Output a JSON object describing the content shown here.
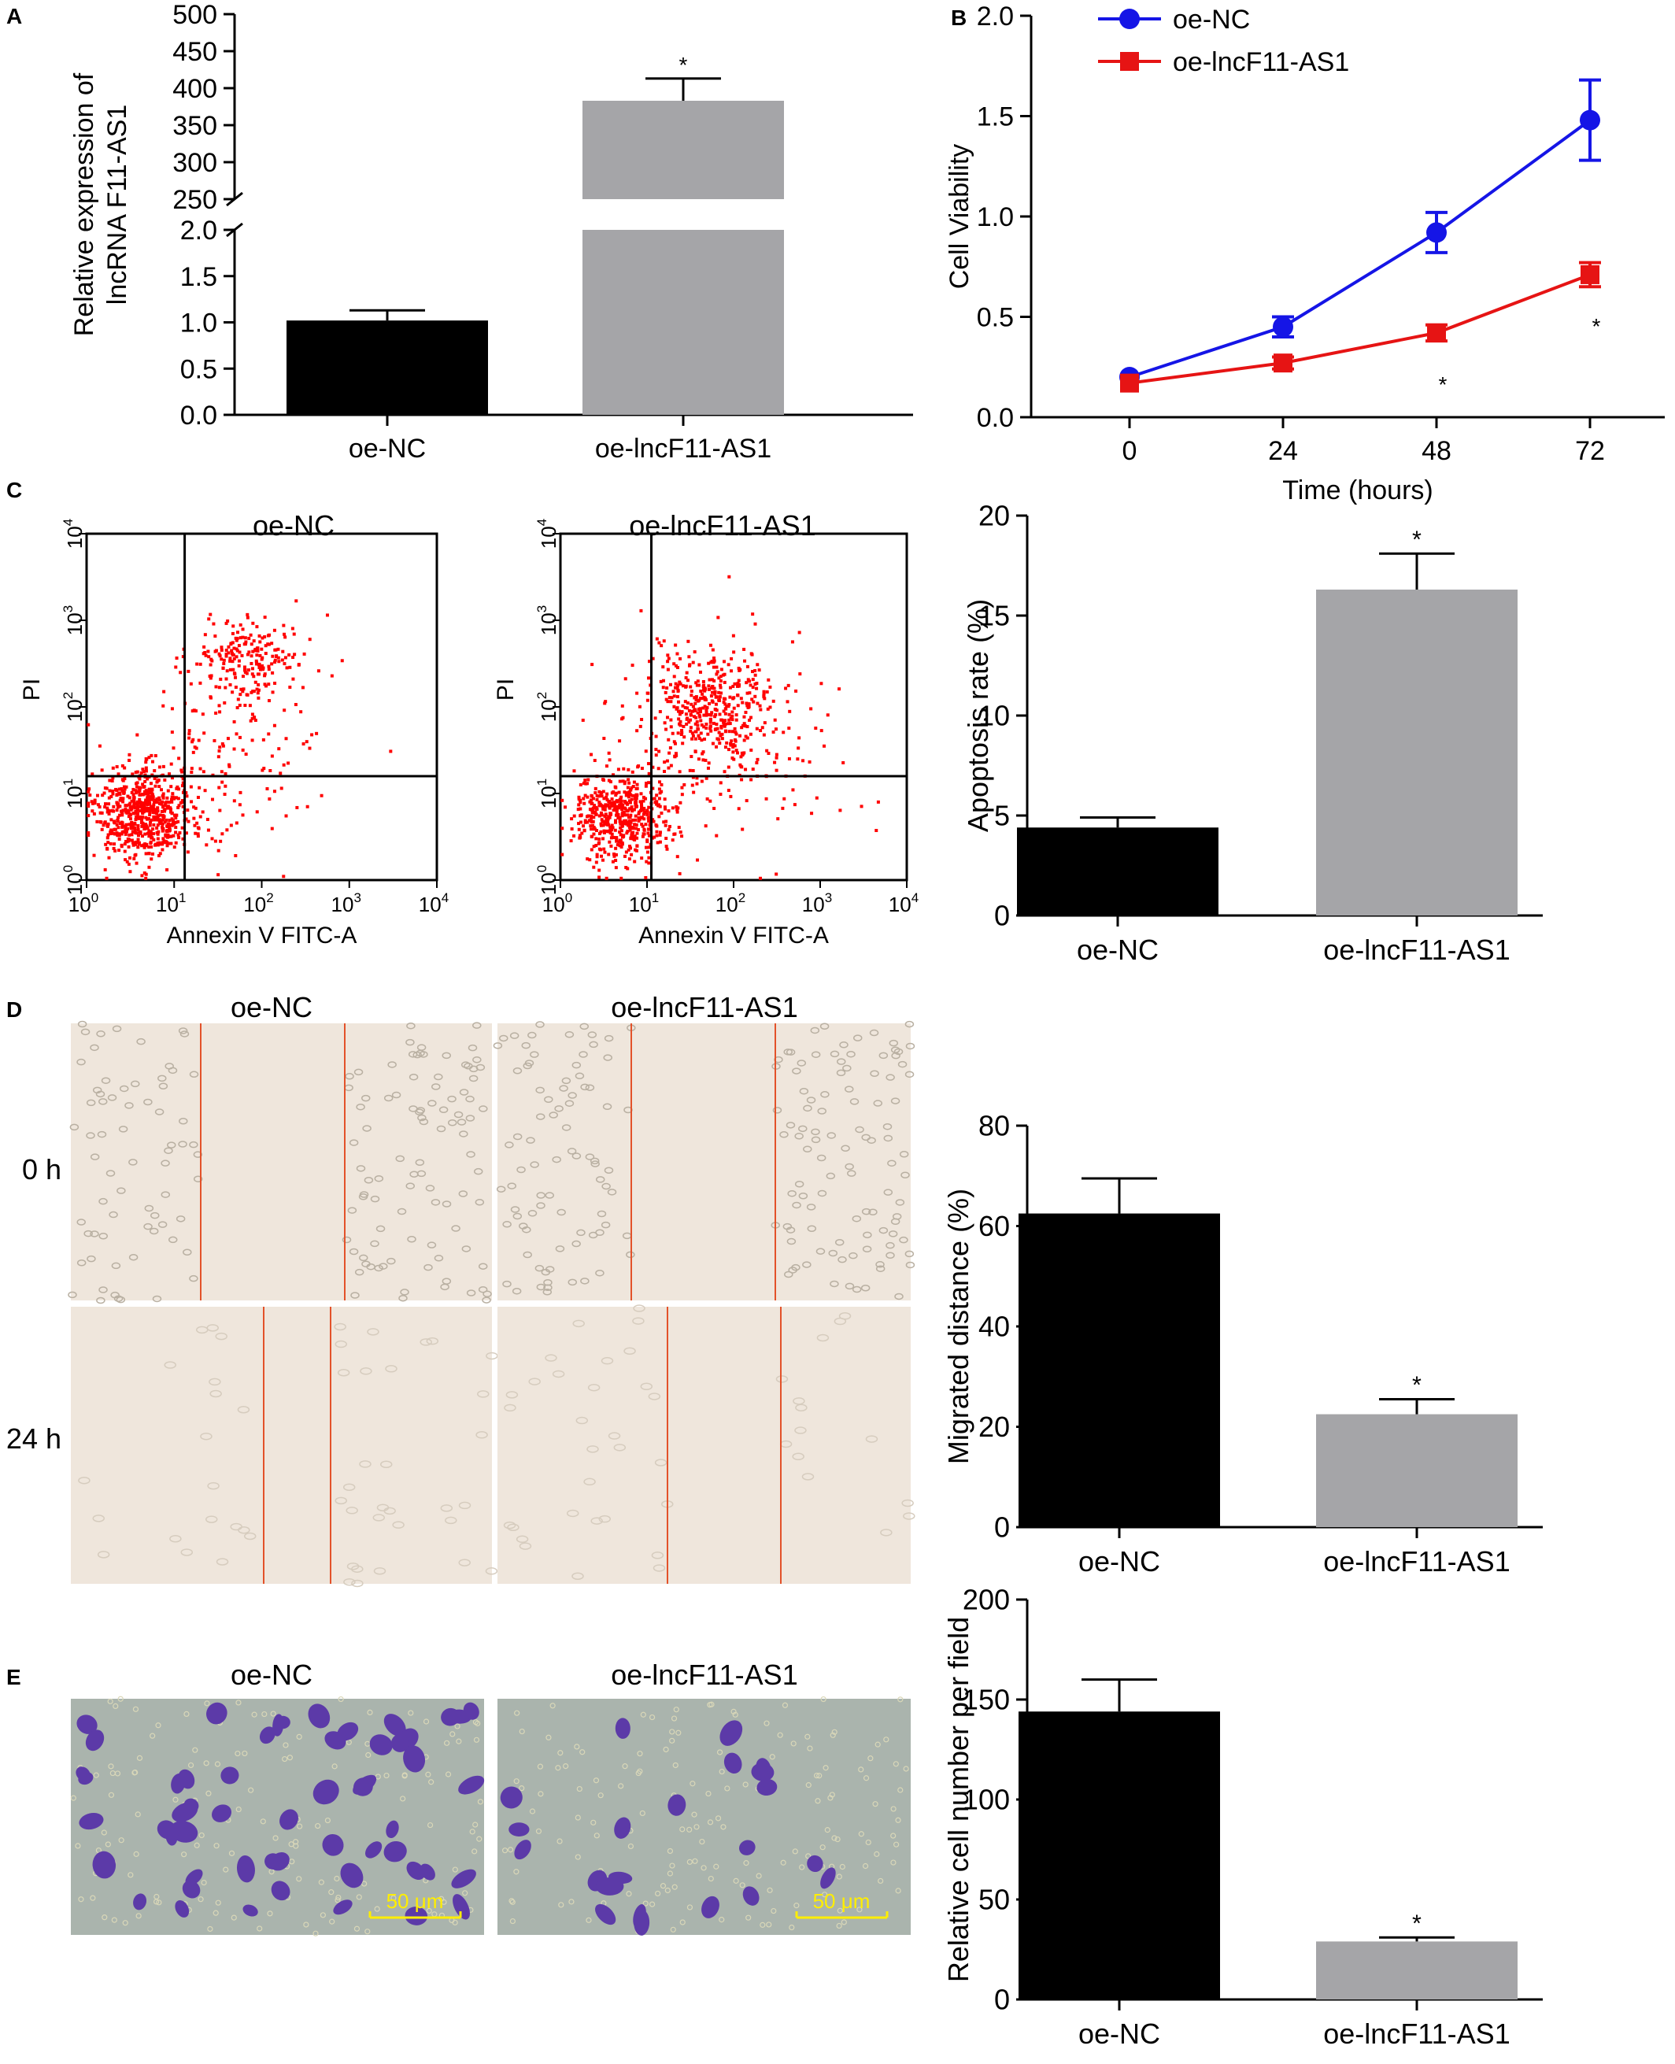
{
  "panels": {
    "A": "A",
    "B": "B",
    "C": "C",
    "D": "D",
    "E": "E"
  },
  "colors": {
    "black_bar": "#000000",
    "gray_bar": "#a5a5a8",
    "nc_line": "#1515e6",
    "as1_line": "#e61414",
    "scatter": "#ff0000",
    "scratch_bg": "#efe6dc",
    "scratch_line": "#e3522a",
    "transwell_bg": "#aab4ad",
    "transwell_cell": "#5c3aa8",
    "scalebar": "#ffee00"
  },
  "groups": {
    "nc": "oe-NC",
    "as1": "oe-lncF11-AS1"
  },
  "significance": "*",
  "flow": {
    "nc_title": "oe-NC",
    "as1_title": "oe-lncF11-AS1",
    "xlabel": "Annexin V FITC-A",
    "ylabel": "PI",
    "ticks": [
      "10",
      "10",
      "10",
      "10",
      "10"
    ],
    "exps": [
      "0",
      "1",
      "2",
      "3",
      "4"
    ]
  },
  "scratch": {
    "nc_title": "oe-NC",
    "as1_title": "oe-lncF11-AS1",
    "row0": "0 h",
    "row24": "24 h"
  },
  "transwell": {
    "nc_title": "oe-NC",
    "as1_title": "oe-lncF11-AS1",
    "scalebar": "50 μm"
  },
  "chart_data": [
    {
      "id": "A",
      "type": "bar",
      "ylabel_line1": "Relative expression of",
      "ylabel_line2": "lncRNA F11-AS1",
      "categories": [
        "oe-NC",
        "oe-lncF11-AS1"
      ],
      "values": [
        1.02,
        383
      ],
      "errors": [
        0.11,
        30
      ],
      "significant": [
        false,
        true
      ],
      "broken_axis": true,
      "lower_ylim": [
        0,
        2
      ],
      "lower_ticks": [
        "0.0",
        "0.5",
        "1.0",
        "1.5",
        "2.0"
      ],
      "upper_ylim": [
        250,
        500
      ],
      "upper_ticks": [
        "250",
        "300",
        "350",
        "400",
        "450",
        "500"
      ]
    },
    {
      "id": "B",
      "type": "line",
      "xlabel": "Time (hours)",
      "ylabel": "Cell Viability",
      "x": [
        0,
        24,
        48,
        72
      ],
      "xticks": [
        "0",
        "24",
        "48",
        "72"
      ],
      "ylim": [
        0,
        2.0
      ],
      "yticks": [
        "0.0",
        "0.5",
        "1.0",
        "1.5",
        "2.0"
      ],
      "legend_position": "top-left",
      "series": [
        {
          "name": "oe-NC",
          "values": [
            0.2,
            0.45,
            0.92,
            1.48
          ],
          "errors": [
            0.02,
            0.05,
            0.1,
            0.2
          ],
          "marker": "circle"
        },
        {
          "name": "oe-lncF11-AS1",
          "values": [
            0.17,
            0.27,
            0.42,
            0.71
          ],
          "errors": [
            0.02,
            0.03,
            0.04,
            0.06
          ],
          "marker": "square",
          "significant": [
            false,
            false,
            true,
            true
          ]
        }
      ]
    },
    {
      "id": "C",
      "type": "bar",
      "ylabel": "Apoptosis rate (%)",
      "categories": [
        "oe-NC",
        "oe-lncF11-AS1"
      ],
      "values": [
        4.4,
        16.3
      ],
      "errors": [
        0.5,
        1.8
      ],
      "significant": [
        false,
        true
      ],
      "ylim": [
        0,
        20
      ],
      "yticks": [
        "0",
        "5",
        "10",
        "15",
        "20"
      ]
    },
    {
      "id": "D",
      "type": "bar",
      "ylabel": "Migrated distance (%)",
      "categories": [
        "oe-NC",
        "oe-lncF11-AS1"
      ],
      "values": [
        62.5,
        22.5
      ],
      "errors": [
        7,
        3
      ],
      "significant": [
        false,
        true
      ],
      "ylim": [
        0,
        80
      ],
      "yticks": [
        "0",
        "20",
        "40",
        "60",
        "80"
      ]
    },
    {
      "id": "E",
      "type": "bar",
      "ylabel": "Relative cell number per field",
      "categories": [
        "oe-NC",
        "oe-lncF11-AS1"
      ],
      "values": [
        144,
        29
      ],
      "errors": [
        16,
        2
      ],
      "significant": [
        false,
        true
      ],
      "ylim": [
        0,
        200
      ],
      "yticks": [
        "0",
        "50",
        "100",
        "150",
        "200"
      ]
    }
  ]
}
